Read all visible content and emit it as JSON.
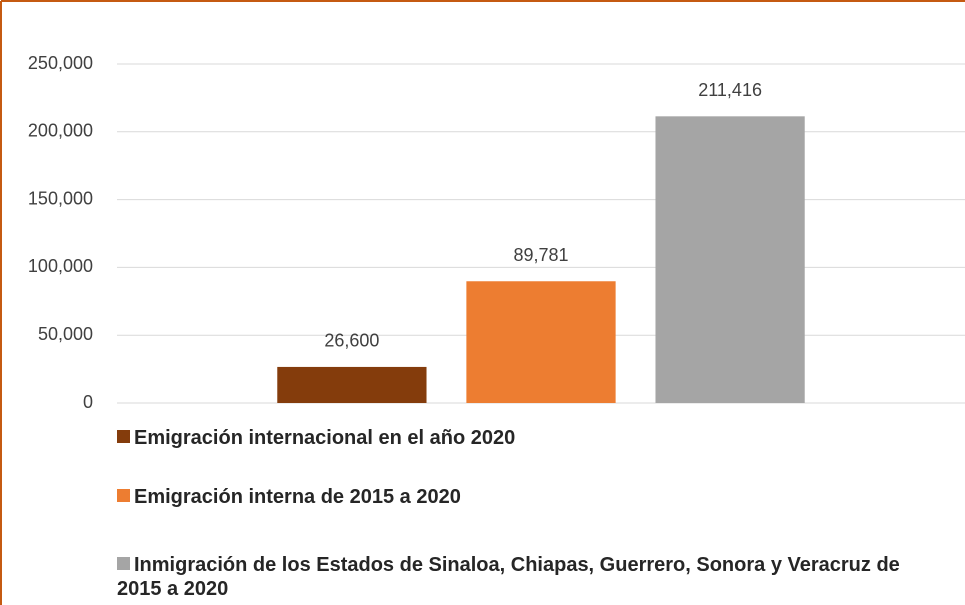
{
  "chart_data": {
    "type": "bar",
    "categories": [
      null
    ],
    "series": [
      {
        "name": "Emigración internacional en el año 2020",
        "color": "#843c0c",
        "values": [
          26600
        ],
        "value_labels": [
          "26,600"
        ]
      },
      {
        "name": "Emigración interna de 2015 a 2020",
        "color": "#ed7d31",
        "values": [
          89781
        ],
        "value_labels": [
          "89,781"
        ]
      },
      {
        "name": "Inmigración de los Estados de Sinaloa, Chiapas, Guerrero, Sonora y Veracruz de 2015 a 2020",
        "color": "#a5a5a5",
        "values": [
          211416
        ],
        "value_labels": [
          "211,416"
        ]
      }
    ],
    "ylim": [
      0,
      250000
    ],
    "yticks": [
      0,
      {
        "value": 50000,
        "label": "50,000"
      },
      {
        "value": 100000,
        "label": "100,000"
      },
      {
        "value": 150000,
        "label": "150,000"
      },
      {
        "value": 200000,
        "label": "200,000"
      },
      {
        "value": 250000,
        "label": "250,000"
      }
    ],
    "grid": true,
    "legend": "bottom"
  }
}
